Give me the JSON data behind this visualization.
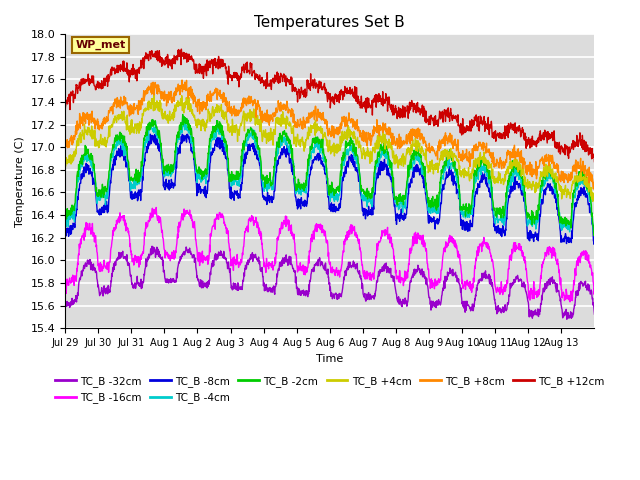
{
  "title": "Temperatures Set B",
  "xlabel": "Time",
  "ylabel": "Temperature (C)",
  "ylim": [
    15.4,
    18.0
  ],
  "background_color": "#dcdcdc",
  "grid_color": "white",
  "series": {
    "TC_B -32cm": {
      "color": "#9900cc",
      "lw": 1.0
    },
    "TC_B -16cm": {
      "color": "#ff00ff",
      "lw": 1.0
    },
    "TC_B -8cm": {
      "color": "#0000dd",
      "lw": 1.0
    },
    "TC_B -4cm": {
      "color": "#00cccc",
      "lw": 1.0
    },
    "TC_B -2cm": {
      "color": "#00cc00",
      "lw": 1.0
    },
    "TC_B +4cm": {
      "color": "#cccc00",
      "lw": 1.0
    },
    "TC_B +8cm": {
      "color": "#ff8800",
      "lw": 1.0
    },
    "TC_B +12cm": {
      "color": "#cc0000",
      "lw": 1.0
    }
  },
  "xtick_labels": [
    "Jul 29",
    "Jul 30",
    "Jul 31",
    "Aug 1",
    "Aug 2",
    "Aug 3",
    "Aug 4",
    "Aug 5",
    "Aug 6",
    "Aug 7",
    "Aug 8",
    "Aug 9",
    "Aug 10",
    "Aug 11",
    "Aug 12",
    "Aug 13"
  ],
  "wp_met_box": {
    "text": "WP_met",
    "facecolor": "#ffff99",
    "edgecolor": "#996600",
    "textcolor": "#660000"
  },
  "legend_order": [
    "TC_B -32cm",
    "TC_B -16cm",
    "TC_B -8cm",
    "TC_B -4cm",
    "TC_B -2cm",
    "TC_B +4cm",
    "TC_B +8cm",
    "TC_B +12cm"
  ]
}
